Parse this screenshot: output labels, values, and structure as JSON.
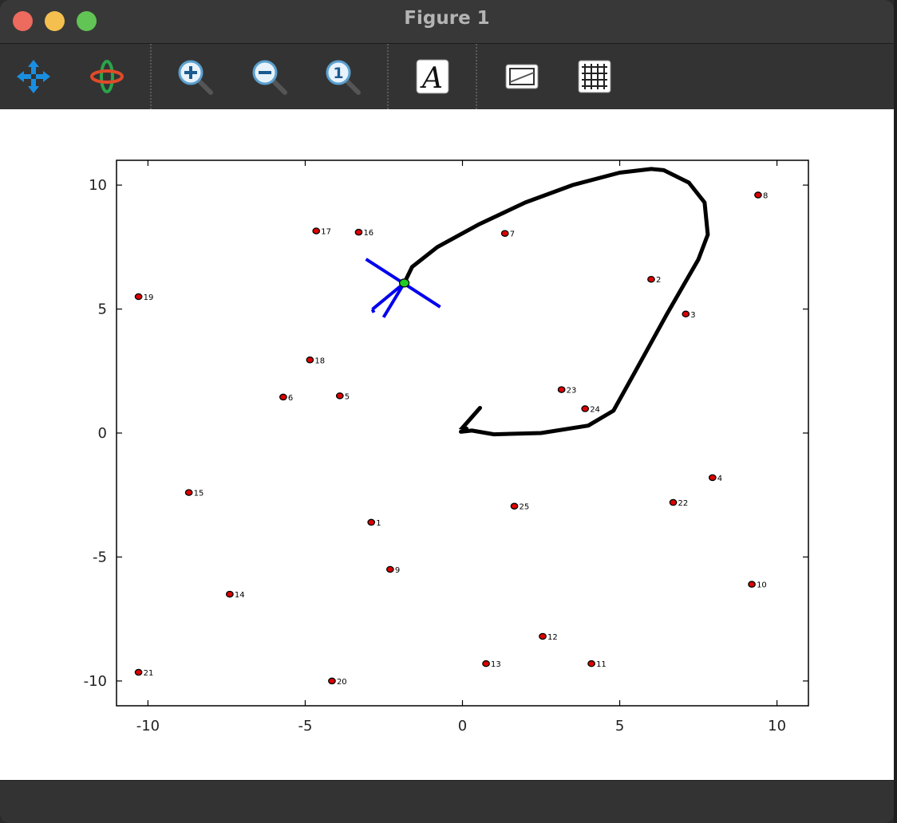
{
  "window": {
    "title": "Figure 1"
  },
  "toolbar": {
    "tools": [
      {
        "name": "pan-tool",
        "icon": "pan-arrows-icon"
      },
      {
        "name": "rotate-tool",
        "icon": "rotate-orbit-icon"
      },
      {
        "name": "zoom-in-tool",
        "icon": "zoom-in-icon"
      },
      {
        "name": "zoom-out-tool",
        "icon": "zoom-out-icon"
      },
      {
        "name": "zoom-reset-tool",
        "icon": "zoom-original-icon"
      },
      {
        "name": "text-tool",
        "icon": "text-A-icon"
      },
      {
        "name": "legend-tool",
        "icon": "legend-box-icon"
      },
      {
        "name": "grid-tool",
        "icon": "grid-icon"
      }
    ]
  },
  "chart_data": {
    "type": "scatter",
    "title": "",
    "xlabel": "",
    "ylabel": "",
    "xlim": [
      -11,
      11
    ],
    "ylim": [
      -11,
      11
    ],
    "xticks": [
      -10,
      -5,
      0,
      5,
      10
    ],
    "yticks": [
      -10,
      -5,
      0,
      5,
      10
    ],
    "xtick_labels": [
      "-10",
      "-5",
      "0",
      "5",
      "10"
    ],
    "ytick_labels": [
      "-10",
      "-5",
      "0",
      "5",
      "10"
    ],
    "grid": false,
    "points": [
      {
        "label": "1",
        "x": -2.9,
        "y": -3.6
      },
      {
        "label": "2",
        "x": 6.0,
        "y": 6.2
      },
      {
        "label": "3",
        "x": 7.1,
        "y": 4.8
      },
      {
        "label": "4",
        "x": 7.95,
        "y": -1.8
      },
      {
        "label": "5",
        "x": -3.9,
        "y": 1.5
      },
      {
        "label": "6",
        "x": -5.7,
        "y": 1.45
      },
      {
        "label": "7",
        "x": 1.35,
        "y": 8.05
      },
      {
        "label": "8",
        "x": 9.4,
        "y": 9.6
      },
      {
        "label": "9",
        "x": -2.3,
        "y": -5.5
      },
      {
        "label": "10",
        "x": 9.2,
        "y": -6.1
      },
      {
        "label": "11",
        "x": 4.1,
        "y": -9.3
      },
      {
        "label": "12",
        "x": 2.55,
        "y": -8.2
      },
      {
        "label": "13",
        "x": 0.75,
        "y": -9.3
      },
      {
        "label": "14",
        "x": -7.4,
        "y": -6.5
      },
      {
        "label": "15",
        "x": -8.7,
        "y": -2.4
      },
      {
        "label": "16",
        "x": -3.3,
        "y": 8.1
      },
      {
        "label": "17",
        "x": -4.65,
        "y": 8.15
      },
      {
        "label": "18",
        "x": -4.85,
        "y": 2.95
      },
      {
        "label": "19",
        "x": -10.3,
        "y": 5.5
      },
      {
        "label": "20",
        "x": -4.15,
        "y": -10.0
      },
      {
        "label": "21",
        "x": -10.3,
        "y": -9.65
      },
      {
        "label": "22",
        "x": 6.7,
        "y": -2.8
      },
      {
        "label": "23",
        "x": 3.15,
        "y": 1.75
      },
      {
        "label": "24",
        "x": 3.9,
        "y": 0.98
      },
      {
        "label": "25",
        "x": 1.65,
        "y": -2.95
      }
    ],
    "path": {
      "color": "#000000",
      "points": [
        [
          -0.05,
          0.05
        ],
        [
          0.3,
          0.1
        ],
        [
          1.0,
          -0.05
        ],
        [
          2.5,
          0.0
        ],
        [
          4.0,
          0.3
        ],
        [
          4.8,
          0.9
        ],
        [
          5.5,
          2.5
        ],
        [
          6.5,
          4.8
        ],
        [
          7.5,
          7.0
        ],
        [
          7.8,
          8.0
        ],
        [
          7.7,
          9.3
        ],
        [
          7.2,
          10.1
        ],
        [
          6.4,
          10.6
        ],
        [
          6.0,
          10.65
        ],
        [
          5.0,
          10.5
        ],
        [
          3.5,
          10.0
        ],
        [
          2.0,
          9.3
        ],
        [
          0.5,
          8.4
        ],
        [
          -0.8,
          7.5
        ],
        [
          -1.6,
          6.7
        ],
        [
          -1.85,
          6.05
        ]
      ]
    },
    "current_position": {
      "x": -1.85,
      "y": 6.05,
      "color": "#22cc22"
    },
    "direction_lines_color": "#0000ee",
    "marker_color": "#dd0000"
  }
}
